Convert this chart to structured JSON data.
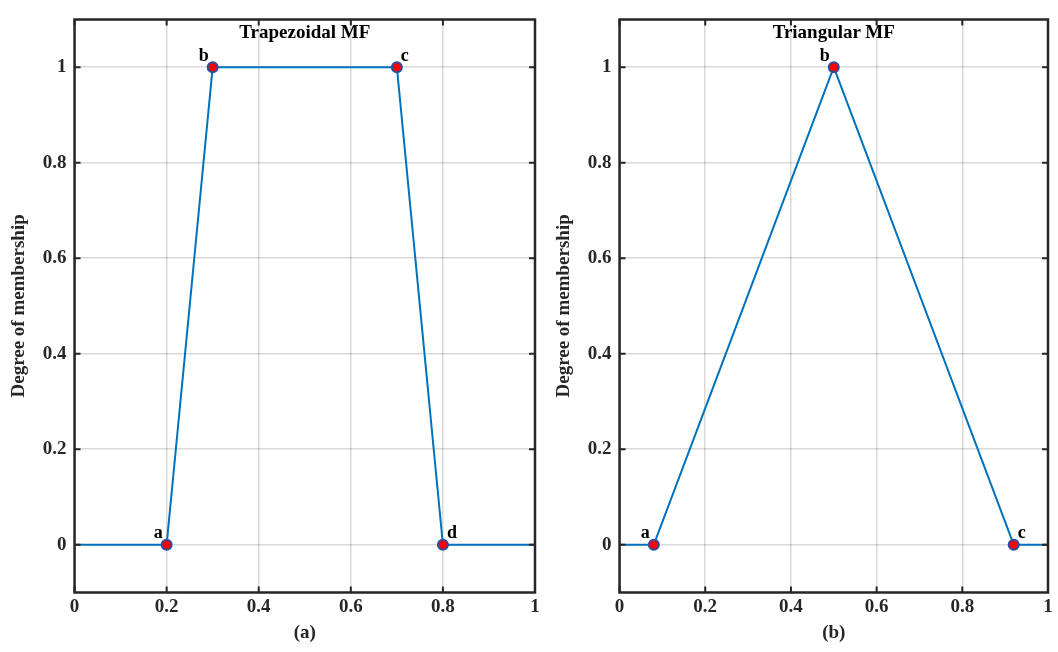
{
  "chart_data": [
    {
      "type": "line",
      "title": "Trapezoidal MF",
      "xlabel": "(a)",
      "ylabel": "Degree of membership",
      "xlim": [
        0,
        1
      ],
      "xticks": [
        0,
        0.2,
        0.4,
        0.6,
        0.8,
        1
      ],
      "ylim": [
        -0.1,
        1.1
      ],
      "yticks": [
        0,
        0.2,
        0.4,
        0.6,
        0.8,
        1
      ],
      "grid": true,
      "legend": false,
      "series": [
        {
          "type": "line",
          "x": [
            0,
            0.2,
            0.3,
            0.7,
            0.8,
            1
          ],
          "values": [
            0,
            0,
            1,
            1,
            0,
            0
          ],
          "color": "#0072bd",
          "marker": "none"
        },
        {
          "type": "scatter",
          "x": [
            0.2,
            0.3,
            0.7,
            0.8
          ],
          "values": [
            0,
            1,
            1,
            0
          ],
          "color": "#ff0000",
          "marker": "circle"
        }
      ],
      "annotations": [
        {
          "text": "a",
          "x": 0.2,
          "y": 0
        },
        {
          "text": "b",
          "x": 0.3,
          "y": 1
        },
        {
          "text": "c",
          "x": 0.7,
          "y": 1
        },
        {
          "text": "d",
          "x": 0.8,
          "y": 0
        }
      ]
    },
    {
      "type": "line",
      "title": "Triangular MF",
      "xlabel": "(b)",
      "ylabel": "Degree of membership",
      "xlim": [
        0,
        1
      ],
      "xticks": [
        0,
        0.2,
        0.4,
        0.6,
        0.8,
        1
      ],
      "ylim": [
        -0.1,
        1.1
      ],
      "yticks": [
        0,
        0.2,
        0.4,
        0.6,
        0.8,
        1
      ],
      "grid": true,
      "legend": false,
      "series": [
        {
          "type": "line",
          "x": [
            0,
            0.08,
            0.5,
            0.92,
            1
          ],
          "values": [
            0,
            0,
            1,
            0,
            0
          ],
          "color": "#0072bd",
          "marker": "none"
        },
        {
          "type": "scatter",
          "x": [
            0.08,
            0.5,
            0.92
          ],
          "values": [
            0,
            1,
            0
          ],
          "color": "#ff0000",
          "marker": "circle"
        }
      ],
      "annotations": [
        {
          "text": "a",
          "x": 0.08,
          "y": 0
        },
        {
          "text": "b",
          "x": 0.5,
          "y": 1
        },
        {
          "text": "c",
          "x": 0.92,
          "y": 0
        }
      ]
    }
  ]
}
